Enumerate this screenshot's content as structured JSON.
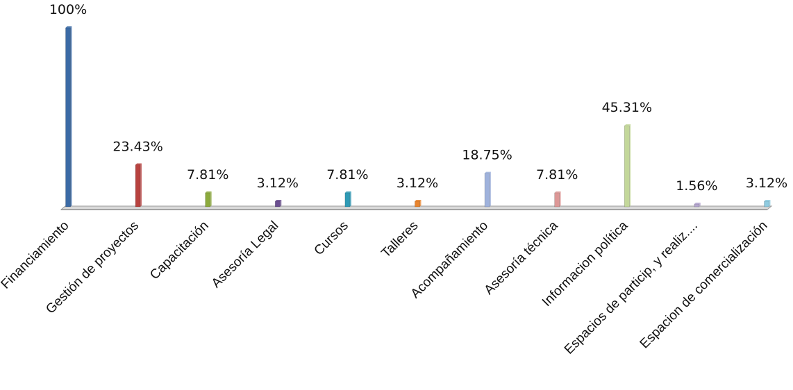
{
  "chart_data": {
    "type": "bar",
    "categories": [
      "Financiamiento",
      "Gestión de proyectos",
      "Capacitación",
      "Asesoría Legal",
      "Cursos",
      "Talleres",
      "Acompañamiento",
      "Asesoría técnica",
      "Informacion política",
      "Espacios de particip, y realiz....",
      "Espacion de comercialización"
    ],
    "values": [
      100,
      23.43,
      7.81,
      3.12,
      7.81,
      3.12,
      18.75,
      7.81,
      45.31,
      1.56,
      3.12
    ],
    "data_labels": [
      "100%",
      "23.43%",
      "7.81%",
      "3.12%",
      "7.81%",
      "3.12%",
      "18.75%",
      "7.81%",
      "45.31%",
      "1.56%",
      "3.12%"
    ],
    "colors": [
      "#3b6aa5",
      "#b8423f",
      "#8caa3c",
      "#6b4f91",
      "#2e9ab5",
      "#e8842e",
      "#9fb2dc",
      "#dc9796",
      "#c3d79a",
      "#b4a6cf",
      "#8fcbe0"
    ],
    "ylim": [
      0,
      100
    ],
    "grid": false,
    "legend": "none",
    "title": "",
    "xlabel": "",
    "ylabel": ""
  }
}
